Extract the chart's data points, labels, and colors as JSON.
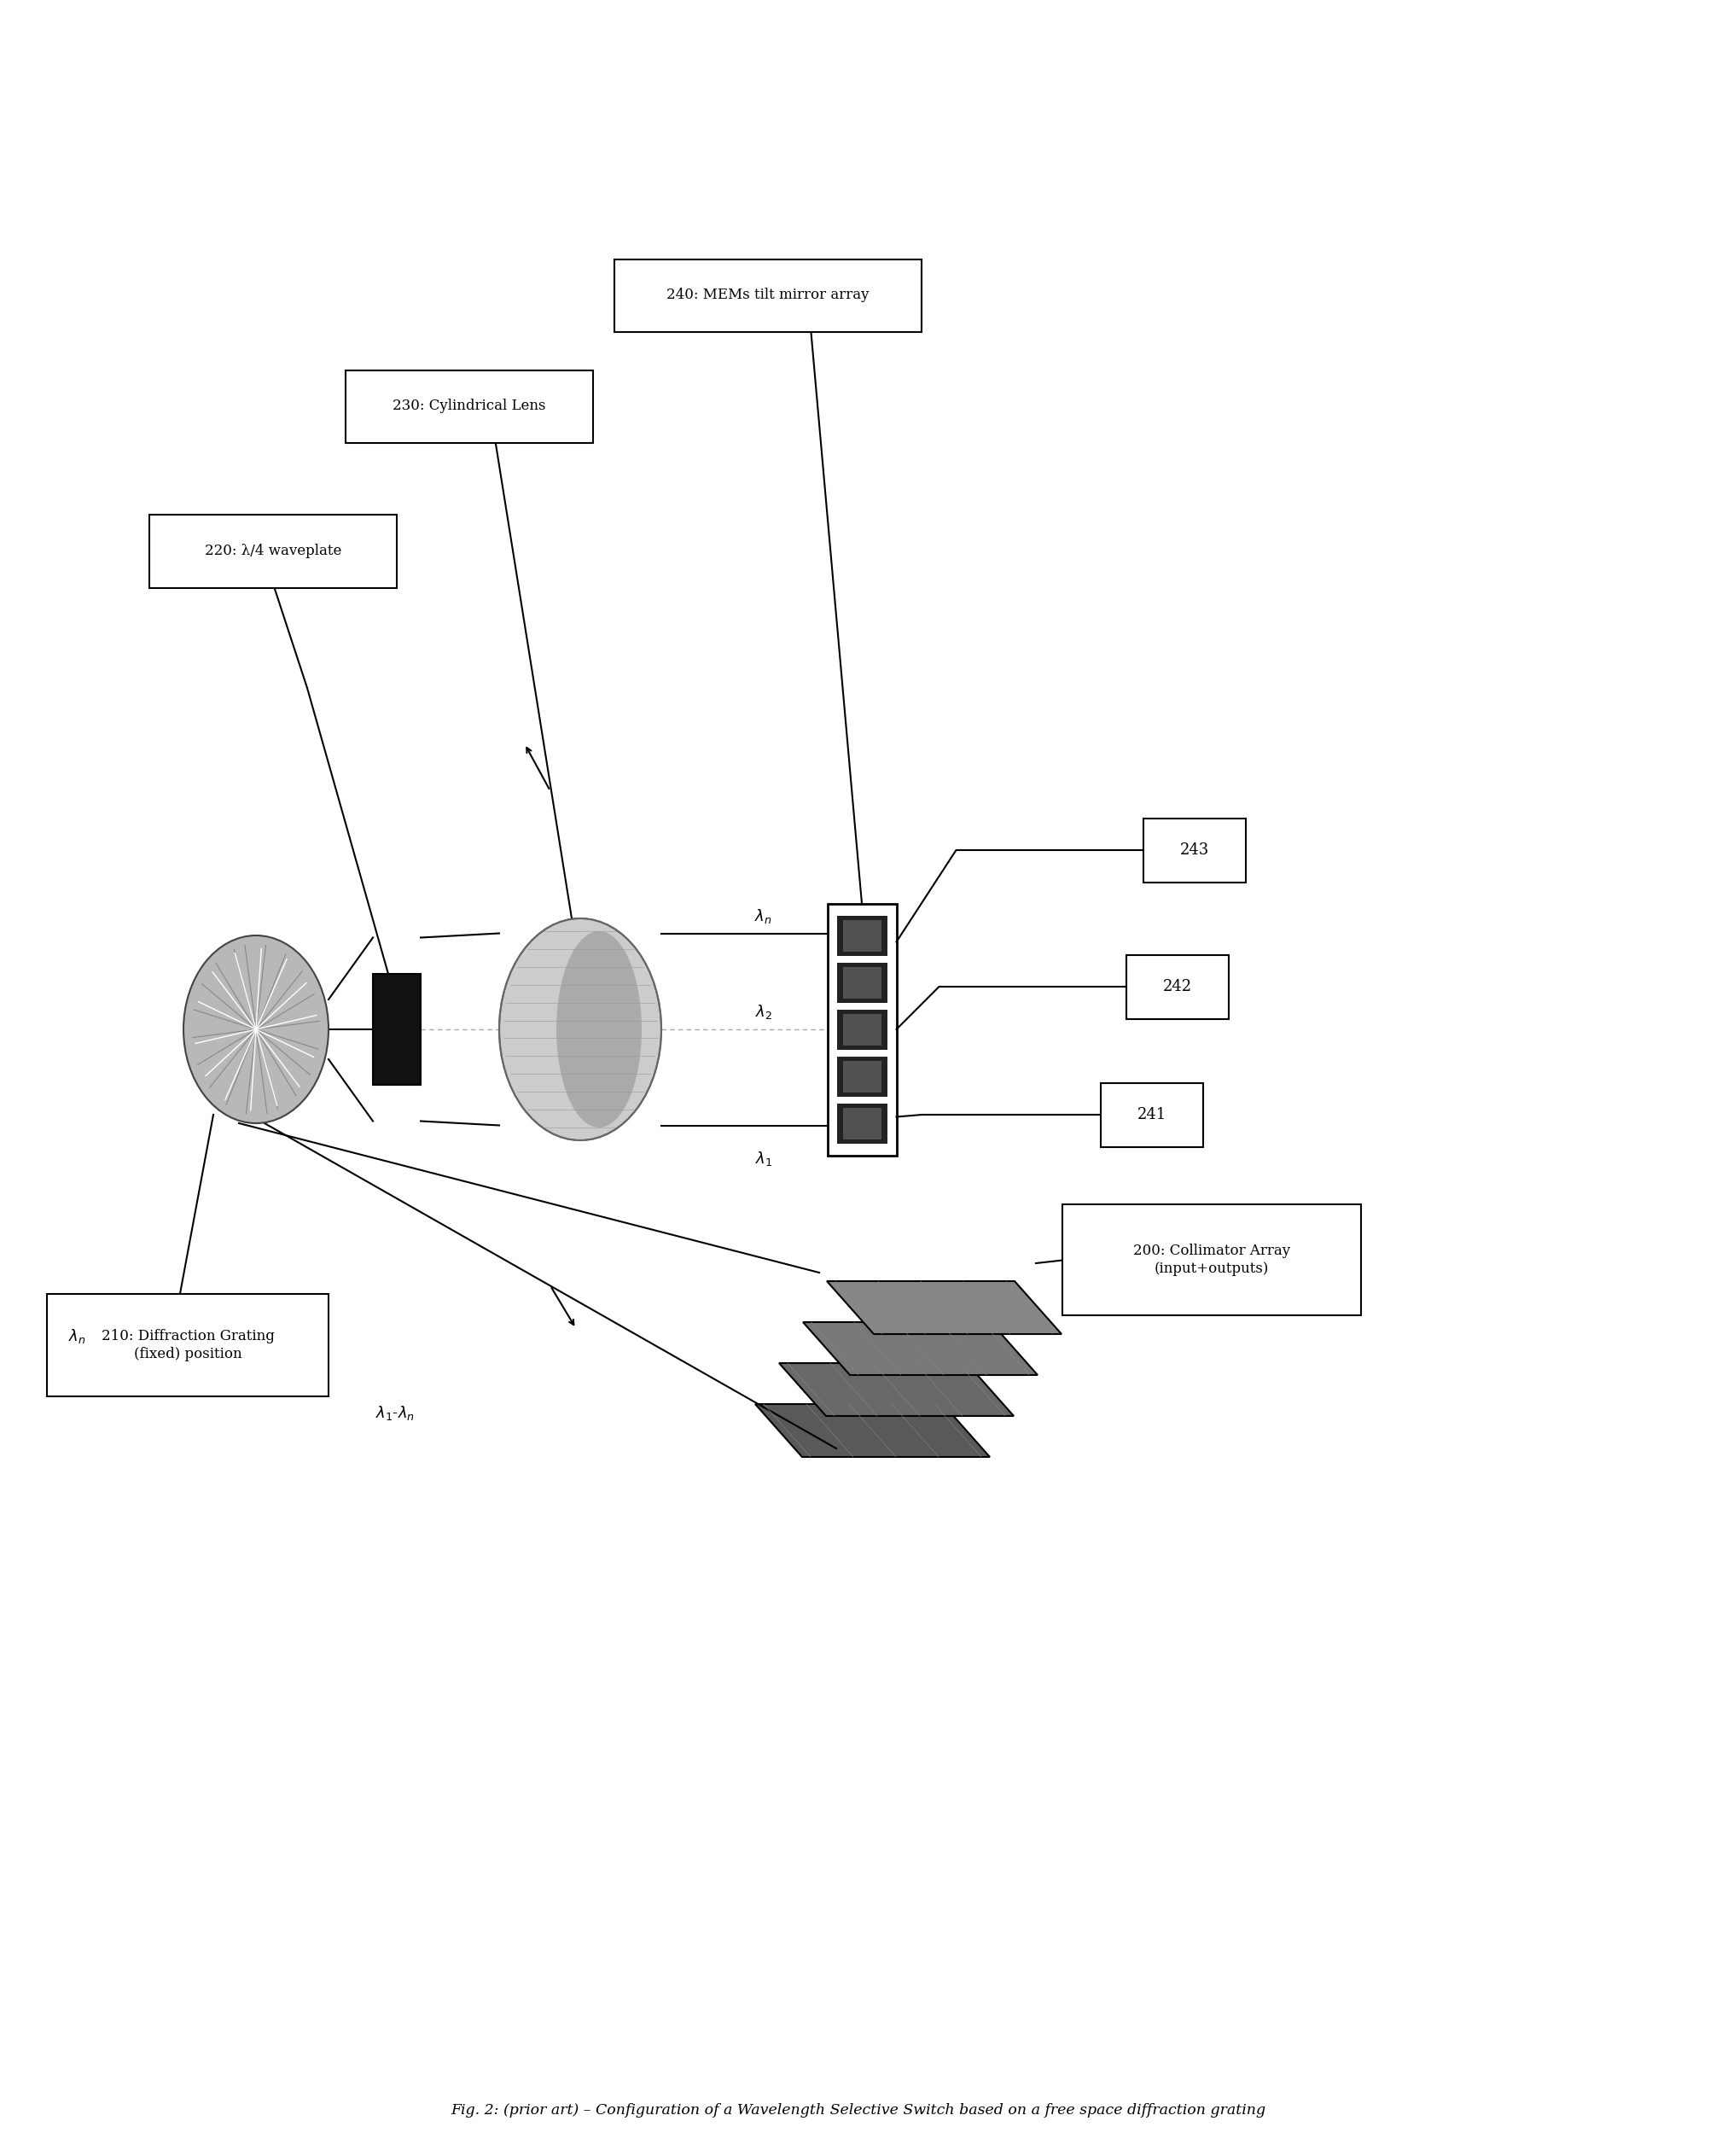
{
  "fig_width": 20.11,
  "fig_height": 25.26,
  "bg_color": "#ffffff",
  "caption": "Fig. 2: (prior art) – Configuration of a Wavelength Selective Switch based on a free space diffraction grating",
  "label_210": "210: Diffraction Grating\n(fixed) position",
  "label_220": "220: λ/4 waveplate",
  "label_230": "230: Cylindrical Lens",
  "label_240": "240: MEMs tilt mirror array",
  "label_200": "200: Collimator Array\n(input+outputs)",
  "label_241": "241",
  "label_242": "242",
  "label_243": "243",
  "lam_n_top": "λₙ",
  "lam_2": "λ₂",
  "lam_1": "λ₁",
  "lam_n_low": "λₙ",
  "lam_1n": "λ₁-λₙ"
}
